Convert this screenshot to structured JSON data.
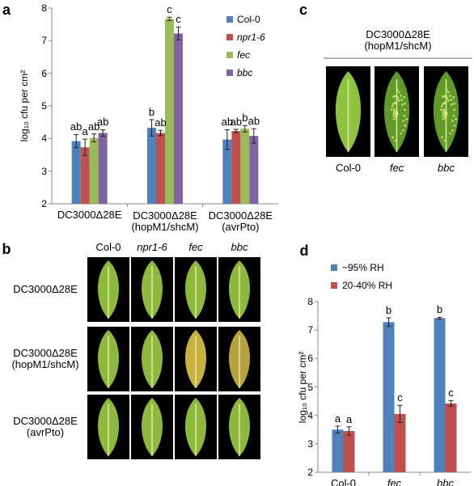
{
  "chart_data": [
    {
      "type": "bar",
      "panel_label": "a",
      "y_label": "log₁₀ cfu per cm²",
      "categories": [
        "DC3000Δ28E",
        "DC3000Δ28E\n(hopM1/shcM)",
        "DC3000Δ28E\n(avrPto)"
      ],
      "series": [
        {
          "name": "Col-0",
          "color": "#4f81bd",
          "style": "normal",
          "values": [
            3.92,
            4.33,
            3.97
          ],
          "errors": [
            0.2,
            0.25,
            0.3
          ],
          "letters": [
            "ab",
            "b",
            "ab"
          ]
        },
        {
          "name": "npr1-6",
          "color": "#c0504d",
          "style": "italic",
          "values": [
            3.73,
            4.17,
            4.23
          ],
          "errors": [
            0.25,
            0.08,
            0.05
          ],
          "letters": [
            "a",
            "ab",
            "ab"
          ]
        },
        {
          "name": "fec",
          "color": "#9bbb59",
          "style": "italic",
          "values": [
            4.02,
            7.67,
            4.3
          ],
          "errors": [
            0.12,
            0.05,
            0.1
          ],
          "letters": [
            "ab",
            "c",
            "b"
          ]
        },
        {
          "name": "bbc",
          "color": "#8064a2",
          "style": "italic",
          "values": [
            4.17,
            7.22,
            4.08
          ],
          "errors": [
            0.1,
            0.2,
            0.22
          ],
          "letters": [
            "ab",
            "c",
            "ab"
          ]
        }
      ],
      "ylim": [
        2,
        8
      ],
      "yticks": [
        2,
        3,
        4,
        5,
        6,
        7,
        8
      ],
      "grid": false,
      "legend": "upper right"
    },
    {
      "type": "bar",
      "panel_label": "d",
      "y_label": "log₁₀ cfu per cm²",
      "categories": [
        "Col-0",
        "fec",
        "bbc"
      ],
      "series": [
        {
          "name": "~95% RH",
          "color": "#4f81bd",
          "style": "normal",
          "values": [
            3.5,
            7.28,
            7.42
          ],
          "errors": [
            0.12,
            0.15,
            0.03
          ],
          "letters": [
            "a",
            "b",
            "b"
          ]
        },
        {
          "name": "20-40% RH",
          "color": "#c0504d",
          "style": "normal",
          "values": [
            3.45,
            4.05,
            4.42
          ],
          "errors": [
            0.15,
            0.3,
            0.1
          ],
          "letters": [
            "a",
            "c",
            "c"
          ]
        }
      ],
      "ylim": [
        2,
        8
      ],
      "yticks": [
        2,
        3,
        4,
        5,
        6,
        7,
        8
      ],
      "grid": false,
      "legend": "top"
    }
  ],
  "photo_panels": [
    {
      "label": "b",
      "columns": [
        "Col-0",
        "npr1-6",
        "fec",
        "bbc"
      ],
      "rows": [
        "DC3000Δ28E",
        "DC3000Δ28E\n(hopM1/shcM)",
        "DC3000Δ28E\n(avrPto)"
      ]
    },
    {
      "label": "c",
      "title": "DC3000Δ28E\n(hopM1/shcM)",
      "columns": [
        "Col-0",
        "fec",
        "bbc"
      ]
    }
  ]
}
